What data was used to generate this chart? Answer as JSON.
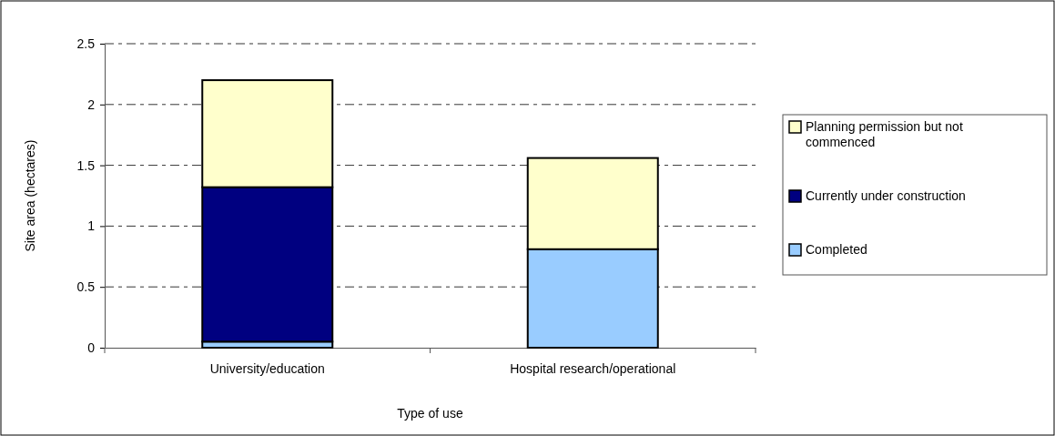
{
  "chart_data": {
    "type": "bar",
    "stacked": true,
    "xlabel": "Type of use",
    "ylabel": "Site area (hectares)",
    "categories": [
      "University/education",
      "Hospital research/operational"
    ],
    "series": [
      {
        "name": "Completed",
        "color": "#99ccff",
        "values": [
          0.05,
          0.81
        ]
      },
      {
        "name": "Currently under construction",
        "color": "#000080",
        "values": [
          1.27,
          0
        ]
      },
      {
        "name": "Planning permission but not commenced",
        "color": "#ffffcc",
        "values": [
          0.88,
          0.75
        ]
      }
    ],
    "ylim": [
      0,
      2.5
    ],
    "yticks": [
      0,
      0.5,
      1,
      1.5,
      2,
      2.5
    ],
    "grid": "y",
    "legend": "right"
  }
}
